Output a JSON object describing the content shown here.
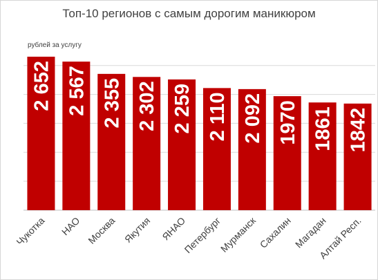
{
  "chart_data": {
    "type": "bar",
    "title": "Топ-10 регионов с самым дорогим маникюром",
    "ylabel": "рублей за услугу",
    "xlabel": "",
    "categories": [
      "Чукотка",
      "НАО",
      "Москва",
      "Якутия",
      "ЯНАО",
      "Петербург",
      "Мурманск",
      "Сахалин",
      "Магадан",
      "Алтай Респ."
    ],
    "values": [
      2652,
      2567,
      2355,
      2302,
      2259,
      2110,
      2092,
      1970,
      1861,
      1842
    ],
    "value_labels": [
      "2 652",
      "2 567",
      "2 355",
      "2 302",
      "2 259",
      "2 110",
      "2 092",
      "1970",
      "1861",
      "1842"
    ],
    "ylim": [
      0,
      2652
    ],
    "grid": true,
    "legend": "none",
    "bar_color": "#c00000",
    "label_color": "#ffffff"
  }
}
